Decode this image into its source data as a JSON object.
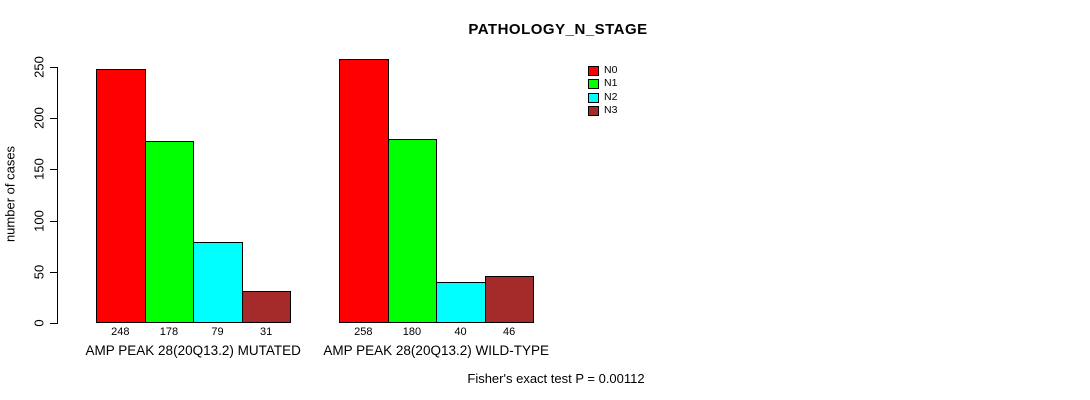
{
  "chart_data": {
    "type": "bar",
    "title": "PATHOLOGY_N_STAGE",
    "ylabel": "number of cases",
    "xlabel": "",
    "ylim": [
      0,
      250
    ],
    "yticks": [
      0,
      50,
      100,
      150,
      200,
      250
    ],
    "grid": false,
    "legend_position": "top-right",
    "legend": [
      {
        "label": "N0",
        "color": "#FF0000"
      },
      {
        "label": "N1",
        "color": "#00FF00"
      },
      {
        "label": "N2",
        "color": "#00FFFF"
      },
      {
        "label": "N3",
        "color": "#A52A2A"
      }
    ],
    "bar_colors": [
      "#FF0000",
      "#00FF00",
      "#00FFFF",
      "#A52A2A"
    ],
    "categories": [
      "N0",
      "N1",
      "N2",
      "N3"
    ],
    "groups": [
      {
        "label": "AMP PEAK 28(20Q13.2) MUTATED",
        "values": [
          248,
          178,
          79,
          31
        ]
      },
      {
        "label": "AMP PEAK 28(20Q13.2) WILD-TYPE",
        "values": [
          258,
          180,
          40,
          46
        ]
      }
    ],
    "annotation": "Fisher's exact test P = 0.00112",
    "colors": {
      "background": "#FFFFFF",
      "axis": "#000000",
      "text": "#000000"
    }
  }
}
